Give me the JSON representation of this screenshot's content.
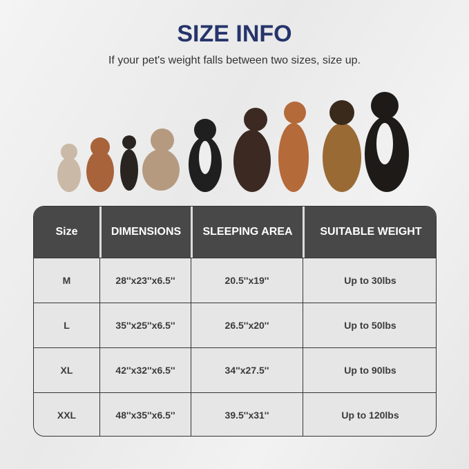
{
  "title": "SIZE INFO",
  "subtitle": "If your pet's weight falls between two sizes, size up.",
  "table": {
    "headers": [
      "Size",
      "DIMENSIONS",
      "SLEEPING AREA",
      "SUITABLE WEIGHT"
    ],
    "rows": [
      [
        "M",
        "28''x23''x6.5''",
        "20.5''x19''",
        "Up to 30lbs"
      ],
      [
        "L",
        "35''x25''x6.5''",
        "26.5''x20''",
        "Up to 50lbs"
      ],
      [
        "XL",
        "42''x32''x6.5''",
        "34''x27.5''",
        "Up to 90lbs"
      ],
      [
        "XXL",
        "48''x35''x6.5''",
        "39.5''x31''",
        "Up to 120lbs"
      ]
    ]
  },
  "colors": {
    "title": "#26346b",
    "header_bg": "#484848",
    "cell_bg": "#e6e6e6"
  }
}
